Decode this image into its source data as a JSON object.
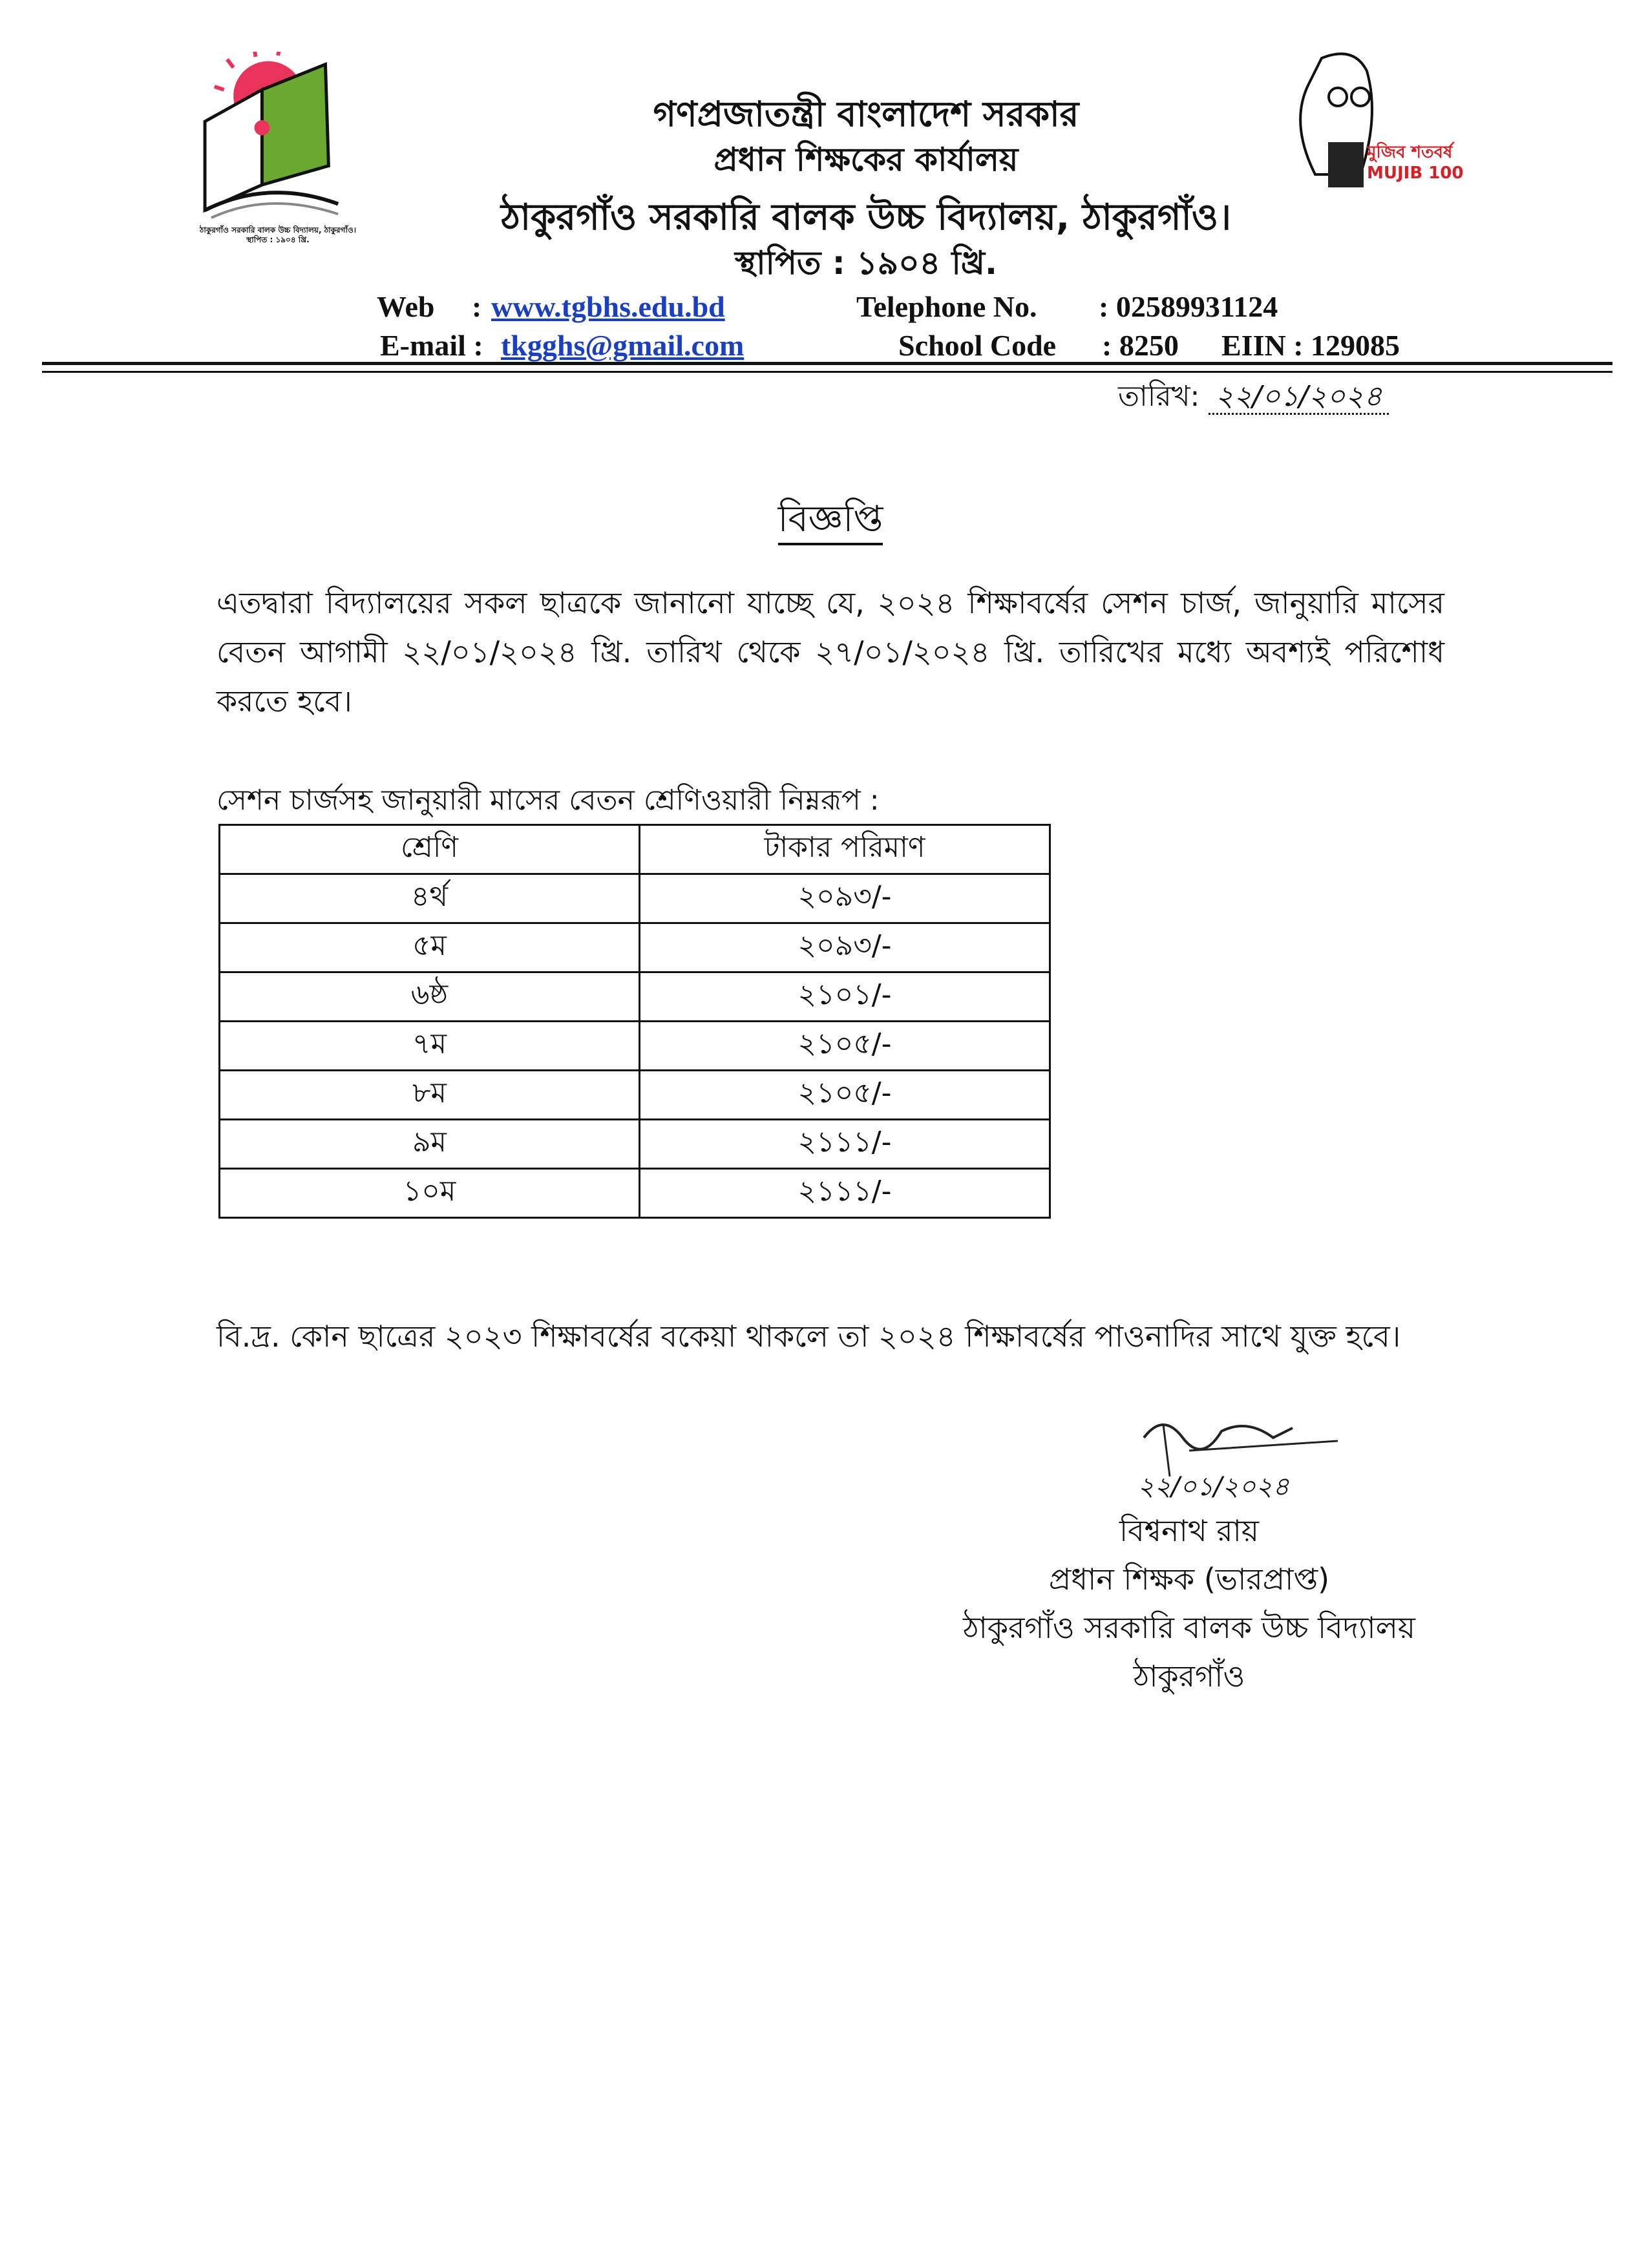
{
  "header": {
    "line1": "গণপ্রজাতন্ত্রী বাংলাদেশ সরকার",
    "line2": "প্রধান শিক্ষকের কার্যালয়",
    "line3": "ঠাকুরগাঁও সরকারি বালক উচ্চ বিদ্যালয়, ঠাকুরগাঁও।",
    "line4": "স্থাপিত : ১৯০৪ খ্রি.",
    "left_logo_text": "ঠাকুরগাঁও সরকারি বালক উচ্চ বিদ্যালয়, ঠাকুরগাঁও। স্থাপিত : ১৯০৪ খ্রি.",
    "right_logo_text": "মুজিব শতবর্ষ MUJIB 100"
  },
  "contact": {
    "web_label": "Web",
    "web_value": "www.tgbhs.edu.bd",
    "email_label": "E-mail :",
    "email_value": "tkgghs@gmail.com",
    "telephone_label": "Telephone No.",
    "telephone_value": ": 02589931124",
    "school_code_label": "School Code",
    "school_code_value": ": 8250",
    "eiin": "EIIN : 129085"
  },
  "date": {
    "label": "তারিখ:",
    "value": "২২/০১/২০২৪"
  },
  "title": "বিজ্ঞপ্তি",
  "body": "এতদ্বারা বিদ্যালয়ের সকল ছাত্রকে জানানো যাচ্ছে যে, ২০২৪ শিক্ষাবর্ষের সেশন চার্জ, জানুয়ারি মাসের বেতন আগামী ২২/০১/২০২৪ খ্রি. তারিখ থেকে ২৭/০১/২০২৪ খ্রি. তারিখের মধ্যে অবশ্যই পরিশোধ করতে হবে।",
  "table_caption": "সেশন চার্জসহ জানুয়ারী মাসের বেতন শ্রেণিওয়ারী নিম্নরূপ :",
  "table": {
    "headers": [
      "শ্রেণি",
      "টাকার পরিমাণ"
    ],
    "rows": [
      [
        "৪র্থ",
        "২০৯৩/-"
      ],
      [
        "৫ম",
        "২০৯৩/-"
      ],
      [
        "৬ষ্ঠ",
        "২১০১/-"
      ],
      [
        "৭ম",
        "২১০৫/-"
      ],
      [
        "৮ম",
        "২১০৫/-"
      ],
      [
        "৯ম",
        "২১১১/-"
      ],
      [
        "১০ম",
        "২১১১/-"
      ]
    ]
  },
  "note": "বি.দ্র. কোন ছাত্রের ২০২৩ শিক্ষাবর্ষের বকেয়া থাকলে তা ২০২৪ শিক্ষাবর্ষের পাওনাদির সাথে যুক্ত হবে।",
  "signature": {
    "signed_date": "২২/০১/২০২৪",
    "name": "বিশ্বনাথ রায়",
    "designation": "প্রধান শিক্ষক (ভারপ্রাপ্ত)",
    "school": "ঠাকুরগাঁও সরকারি বালক উচ্চ বিদ্যালয়",
    "town": "ঠাকুরগাঁও"
  }
}
